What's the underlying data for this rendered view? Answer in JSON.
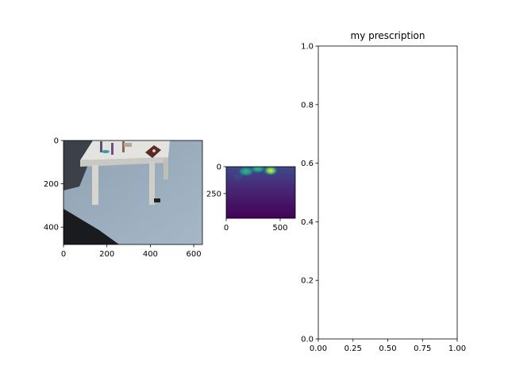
{
  "colors": {
    "frame": "#000000",
    "axes_background": "#ffffff",
    "viridis_dark": "#440154",
    "viridis_mid": "#3b528b",
    "viridis_teal": "#21918c",
    "viridis_green": "#5ec962",
    "viridis_yellow": "#fde725"
  },
  "chart_data": [
    {
      "type": "image",
      "content": "photo",
      "title": "",
      "xlim": [
        0,
        640
      ],
      "ylim": [
        480,
        0
      ],
      "xticks": [
        0,
        200,
        400,
        600
      ],
      "yticks": [
        0,
        200,
        400
      ],
      "xtick_labels": [
        "0",
        "200",
        "400",
        "600"
      ],
      "ytick_labels": [
        "0",
        "200",
        "400"
      ]
    },
    {
      "type": "heatmap",
      "colormap": "viridis",
      "title": "",
      "xlim": [
        0,
        640
      ],
      "ylim": [
        480,
        0
      ],
      "xticks": [
        0,
        500
      ],
      "yticks": [
        0,
        250
      ],
      "xtick_labels": [
        "0",
        "500"
      ],
      "ytick_labels": [
        "0",
        "250"
      ]
    },
    {
      "type": "line",
      "title": "my prescription",
      "xlabel": "",
      "ylabel": "",
      "xlim": [
        0.0,
        1.0
      ],
      "ylim": [
        0.0,
        1.0
      ],
      "xticks": [
        0.0,
        0.25,
        0.5,
        0.75,
        1.0
      ],
      "yticks": [
        0.0,
        0.2,
        0.4,
        0.6,
        0.8,
        1.0
      ],
      "xtick_labels": [
        "0.00",
        "0.25",
        "0.50",
        "0.75",
        "1.00"
      ],
      "ytick_labels": [
        "0.0",
        "0.2",
        "0.4",
        "0.6",
        "0.8",
        "1.0"
      ],
      "series": []
    }
  ]
}
